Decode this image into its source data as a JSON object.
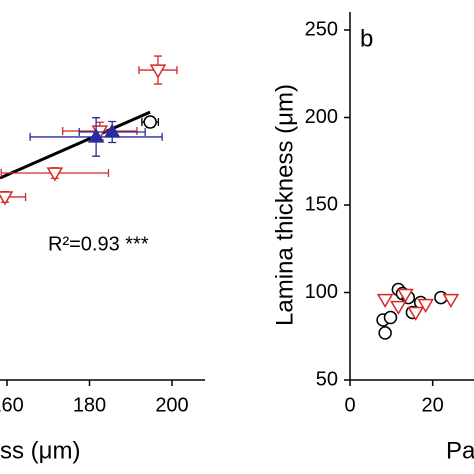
{
  "chart_data": [
    {
      "type": "scatter",
      "xlabel": "ss (μm)",
      "annotation": "R²=0.93 ***",
      "xlim": [
        158.3,
        208
      ],
      "ylim": [
        50,
        250
      ],
      "xticks": [
        160,
        180,
        200
      ],
      "series": [
        {
          "name": "red",
          "color": "#d62728",
          "marker": "down-triangle",
          "x": [
            196.6,
            182.5,
            171.6,
            159.5
          ],
          "y": [
            227.1,
            192.3,
            168.3,
            154.6
          ],
          "xerr": [
            4.6,
            9,
            13,
            5
          ],
          "yerr": [
            8,
            5,
            3,
            3
          ]
        },
        {
          "name": "black",
          "color": "#000000",
          "marker": "circle",
          "x": [
            194.7
          ],
          "y": [
            197.4
          ],
          "xerr": [
            2
          ],
          "yerr": [
            3
          ]
        },
        {
          "name": "blue",
          "color": "#2b2b9e",
          "marker": "triangle",
          "x": [
            181.6,
            185.5
          ],
          "y": [
            188.9,
            191.7
          ],
          "xerr": [
            16,
            8
          ],
          "yerr": [
            11,
            6
          ]
        }
      ],
      "fit": {
        "x": [
          158.3,
          194.7
        ],
        "y": [
          165.4,
          203.1
        ],
        "color": "#000000"
      }
    },
    {
      "type": "scatter",
      "xlabel": "Pa",
      "ylabel": "Lamina thickness (μm)",
      "annotation": "b",
      "xlim": [
        0,
        30
      ],
      "ylim": [
        50,
        250
      ],
      "xticks": [
        0,
        20
      ],
      "yticks": [
        50,
        100,
        150,
        200,
        250
      ],
      "series": [
        {
          "name": "black",
          "color": "#000000",
          "marker": "circle",
          "x": [
            8.0,
            8.5,
            9.8,
            11.7,
            12.7,
            14.1,
            15.1,
            17.1,
            22.0
          ],
          "y": [
            84.3,
            76.9,
            85.7,
            101.7,
            99.4,
            97.1,
            88.6,
            94.3,
            97.1
          ]
        },
        {
          "name": "red",
          "color": "#d62728",
          "marker": "down-triangle",
          "x": [
            8.5,
            11.7,
            13.4,
            15.9,
            18.3,
            24.4
          ],
          "y": [
            96.0,
            92.0,
            98.9,
            88.6,
            93.1,
            96.0
          ]
        }
      ]
    }
  ]
}
